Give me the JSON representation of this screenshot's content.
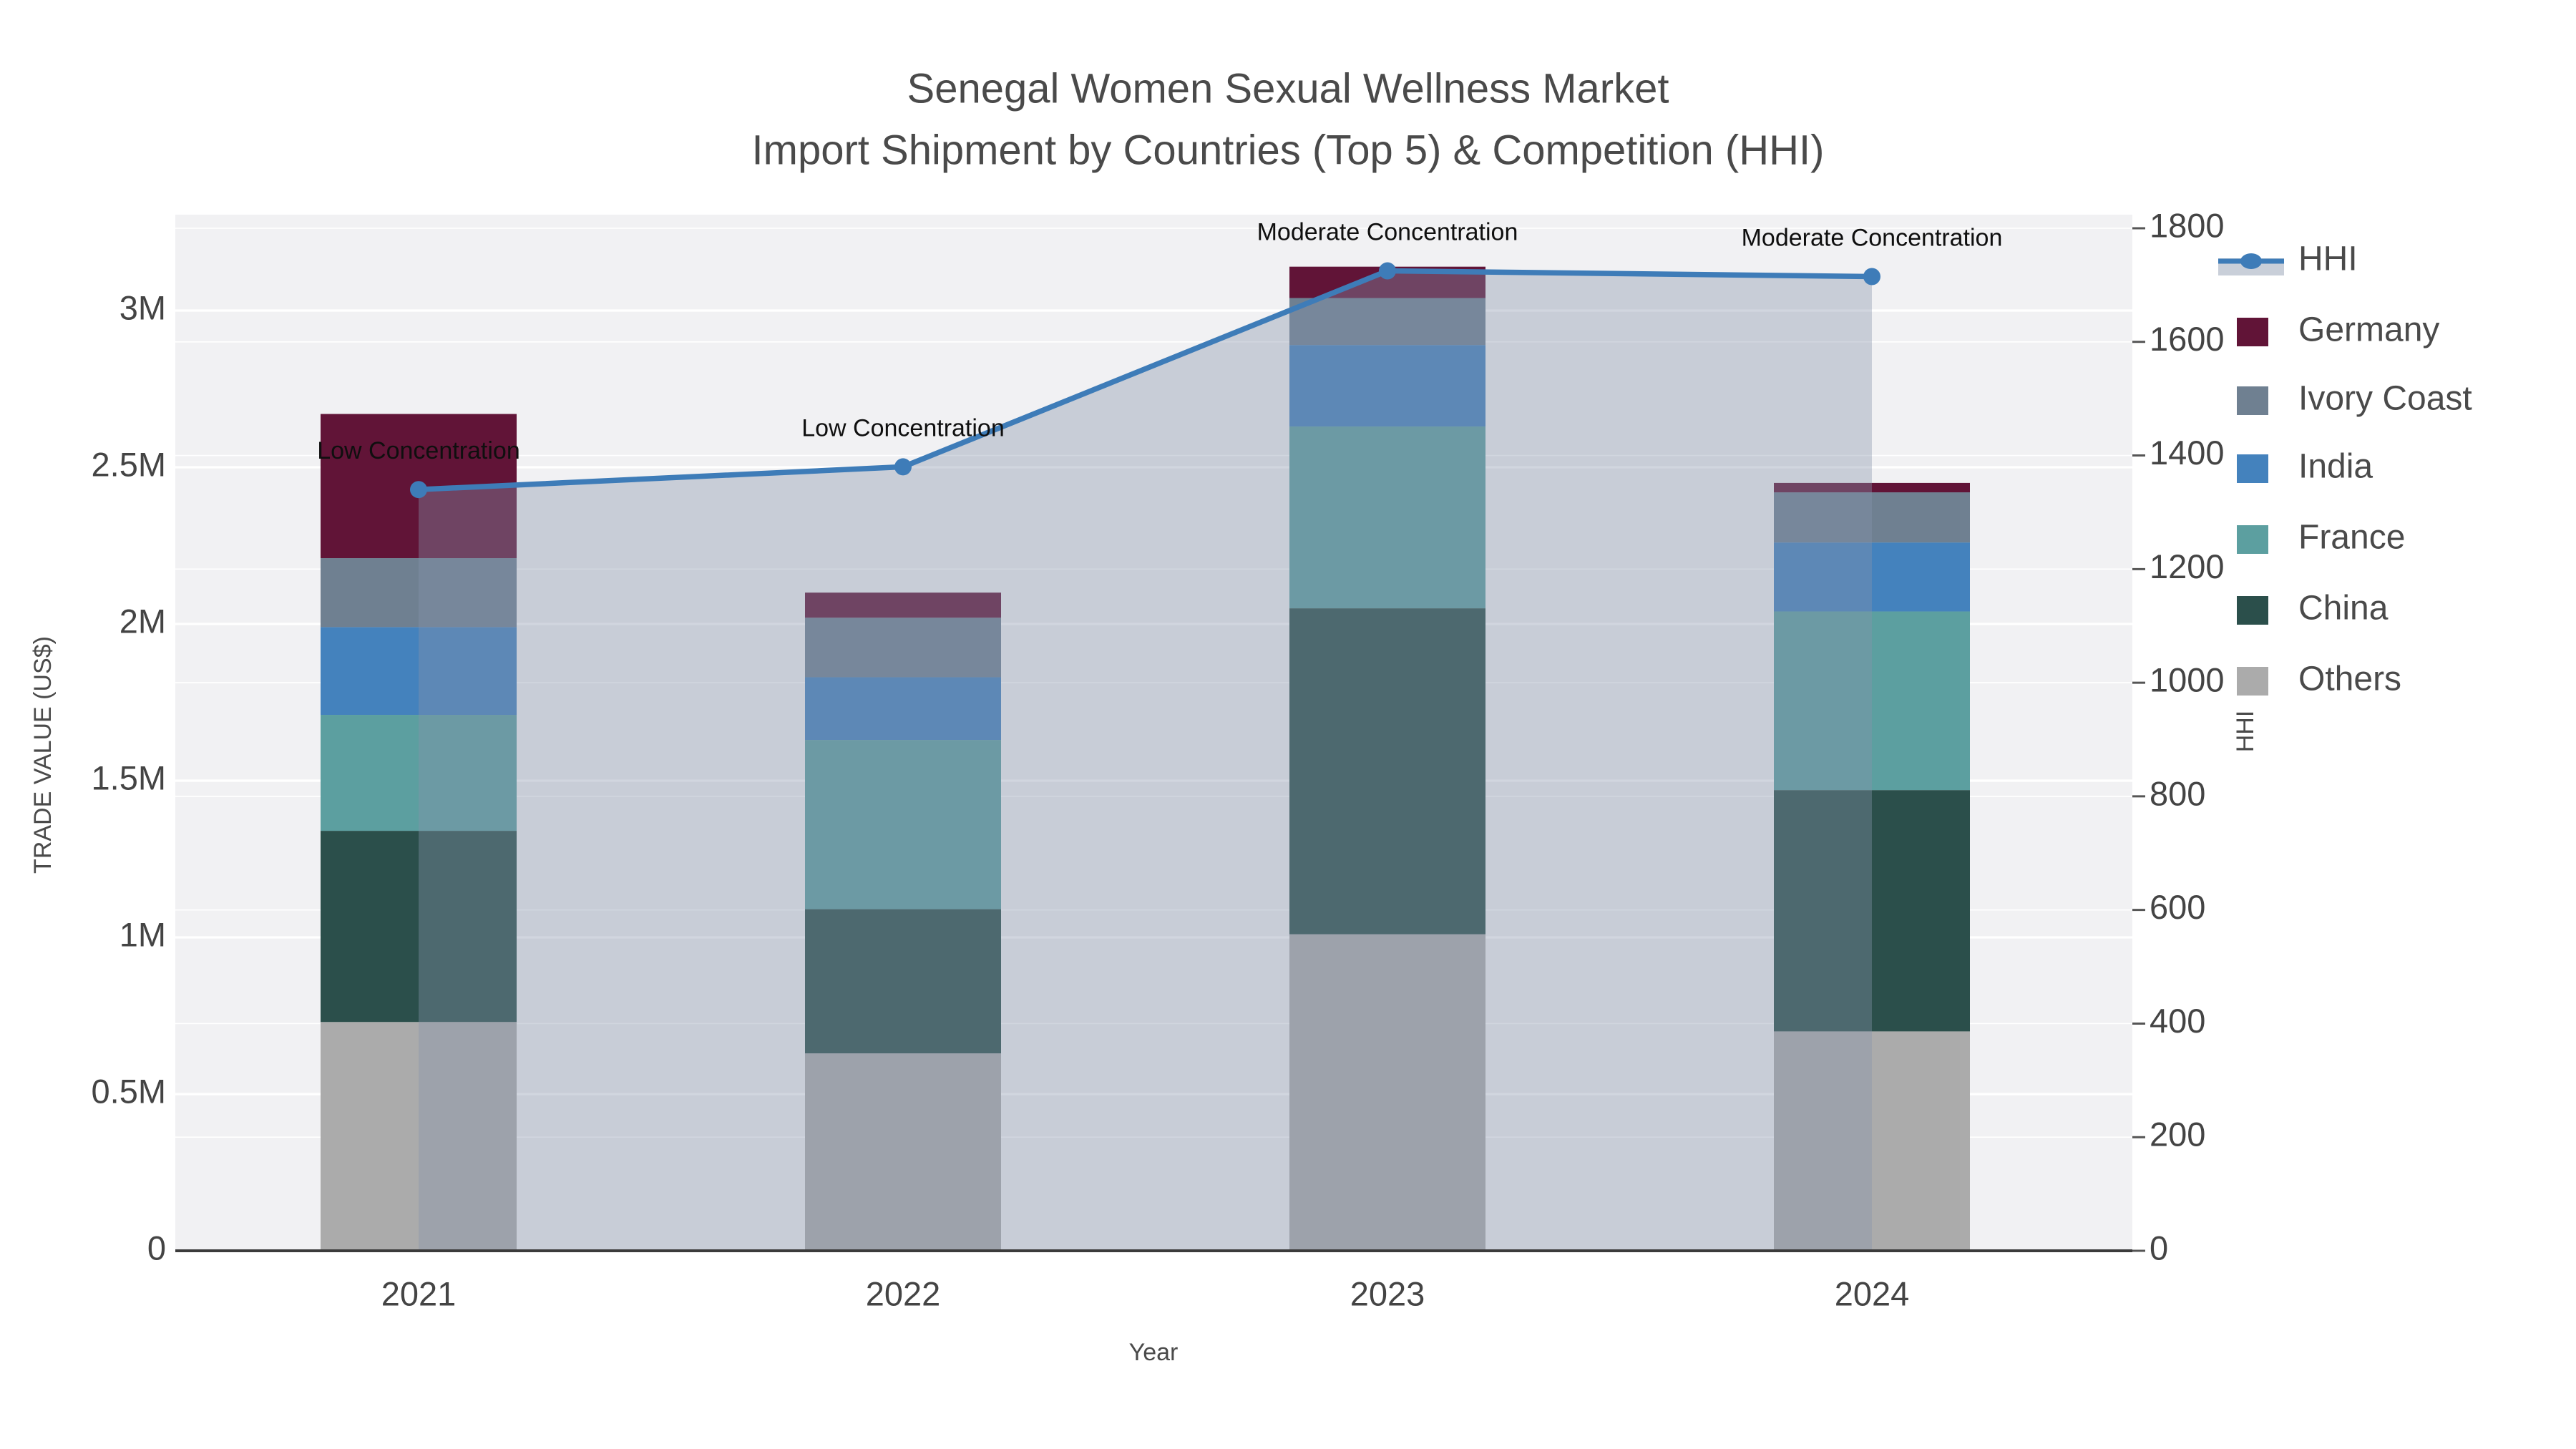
{
  "title": {
    "line1": "Senegal Women Sexual Wellness Market",
    "line2": "Import Shipment by Countries (Top 5) & Competition (HHI)"
  },
  "axes": {
    "x": {
      "title": "Year",
      "categories": [
        "2021",
        "2022",
        "2023",
        "2024"
      ]
    },
    "y_left": {
      "title": "TRADE VALUE (US$)",
      "tick_labels": [
        "0",
        "0.5M",
        "1M",
        "1.5M",
        "2M",
        "2.5M",
        "3M"
      ],
      "tick_values": [
        0,
        0.5,
        1,
        1.5,
        2,
        2.5,
        3
      ]
    },
    "y_right": {
      "title": "HHI",
      "tick_labels": [
        "0",
        "200",
        "400",
        "600",
        "800",
        "1000",
        "1200",
        "1400",
        "1600",
        "1800"
      ],
      "tick_values": [
        0,
        200,
        400,
        600,
        800,
        1000,
        1200,
        1400,
        1600,
        1800
      ],
      "range": [
        0,
        1800
      ]
    }
  },
  "legend": {
    "items": [
      {
        "label": "HHI",
        "type": "line",
        "color": "#3E7CB8"
      },
      {
        "label": "Germany",
        "type": "swatch",
        "color": "#611437"
      },
      {
        "label": "Ivory Coast",
        "type": "swatch",
        "color": "#6F8091"
      },
      {
        "label": "India",
        "type": "swatch",
        "color": "#4482BD"
      },
      {
        "label": "France",
        "type": "swatch",
        "color": "#5C9FA0"
      },
      {
        "label": "China",
        "type": "swatch",
        "color": "#2B4F4B"
      },
      {
        "label": "Others",
        "type": "swatch",
        "color": "#ABABAB"
      }
    ]
  },
  "colors": {
    "plot_bg": "#f1f1f3",
    "gridline": "#ffffff",
    "axis_line": "#3b3b3b",
    "text_main": "#4a4a4a",
    "text_tick": "#444444",
    "annotation": "#0f0f0f",
    "hhi_line": "#3E7CB8",
    "hhi_area": "rgba(134,148,172,0.38)"
  },
  "chart_data": {
    "type": "stacked-bar+line",
    "title": "Senegal Women Sexual Wellness Market — Import Shipment by Countries (Top 5) & Competition (HHI)",
    "categories": [
      "2021",
      "2022",
      "2023",
      "2024"
    ],
    "bar_value_unit": "US$ millions",
    "series": [
      {
        "name": "Others",
        "color": "#ABABAB",
        "values": [
          0.73,
          0.63,
          1.01,
          0.7
        ]
      },
      {
        "name": "China",
        "color": "#2B4F4B",
        "values": [
          0.61,
          0.46,
          1.04,
          0.77
        ]
      },
      {
        "name": "France",
        "color": "#5C9FA0",
        "values": [
          0.37,
          0.54,
          0.58,
          0.57
        ]
      },
      {
        "name": "India",
        "color": "#4482BD",
        "values": [
          0.28,
          0.2,
          0.26,
          0.22
        ]
      },
      {
        "name": "Ivory Coast",
        "color": "#6F8091",
        "values": [
          0.22,
          0.19,
          0.15,
          0.16
        ]
      },
      {
        "name": "Germany",
        "color": "#611437",
        "values": [
          0.46,
          0.08,
          0.1,
          0.03
        ]
      }
    ],
    "bar_totals_musd": [
      2.67,
      2.1,
      3.14,
      2.45
    ],
    "line_series": {
      "name": "HHI",
      "axis": "right",
      "color": "#3E7CB8",
      "area_fill": "rgba(134,148,172,0.38)",
      "values": [
        1340,
        1380,
        1725,
        1715
      ]
    },
    "annotations": [
      {
        "x": "2021",
        "text": "Low Concentration"
      },
      {
        "x": "2022",
        "text": "Low Concentration"
      },
      {
        "x": "2023",
        "text": "Moderate Concentration"
      },
      {
        "x": "2024",
        "text": "Moderate Concentration"
      }
    ],
    "xlabel": "Year",
    "ylabel_left": "TRADE VALUE (US$)",
    "ylabel_right": "HHI",
    "ylim_left_musd": [
      0,
      3.31
    ],
    "ylim_right": [
      0,
      1800
    ],
    "grid": true,
    "legend_position": "right"
  }
}
